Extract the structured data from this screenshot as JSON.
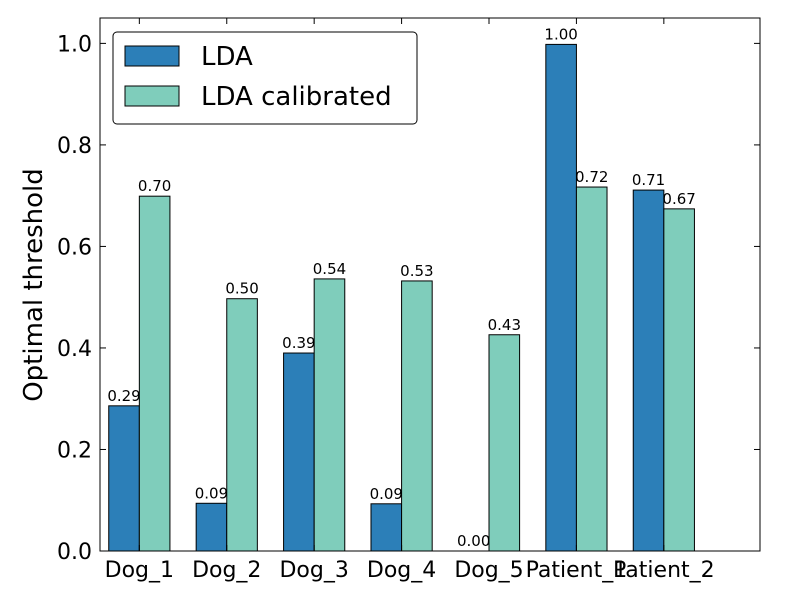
{
  "chart_data": {
    "type": "bar",
    "title": "",
    "xlabel": "",
    "ylabel": "Optimal threshold",
    "ylim": [
      0.0,
      1.05
    ],
    "yticks": [
      "0.0",
      "0.2",
      "0.4",
      "0.6",
      "0.8",
      "1.0"
    ],
    "ytick_values": [
      0.0,
      0.2,
      0.4,
      0.6,
      0.8,
      1.0
    ],
    "categories": [
      "Dog_1",
      "Dog_2",
      "Dog_3",
      "Dog_4",
      "Dog_5",
      "Patient_1",
      "Patient_2"
    ],
    "series": [
      {
        "name": "LDA",
        "color": "#2c7fb8",
        "values": [
          0.286,
          0.094,
          0.39,
          0.093,
          0.0,
          0.998,
          0.711
        ],
        "labels": [
          "0.29",
          "0.09",
          "0.39",
          "0.09",
          "0.00",
          "1.00",
          "0.71"
        ]
      },
      {
        "name": "LDA calibrated",
        "color": "#7fcdbb",
        "values": [
          0.699,
          0.497,
          0.536,
          0.532,
          0.426,
          0.717,
          0.674
        ],
        "labels": [
          "0.70",
          "0.50",
          "0.54",
          "0.53",
          "0.43",
          "0.72",
          "0.67"
        ]
      }
    ],
    "grid": false,
    "legend_position": "top-left"
  }
}
